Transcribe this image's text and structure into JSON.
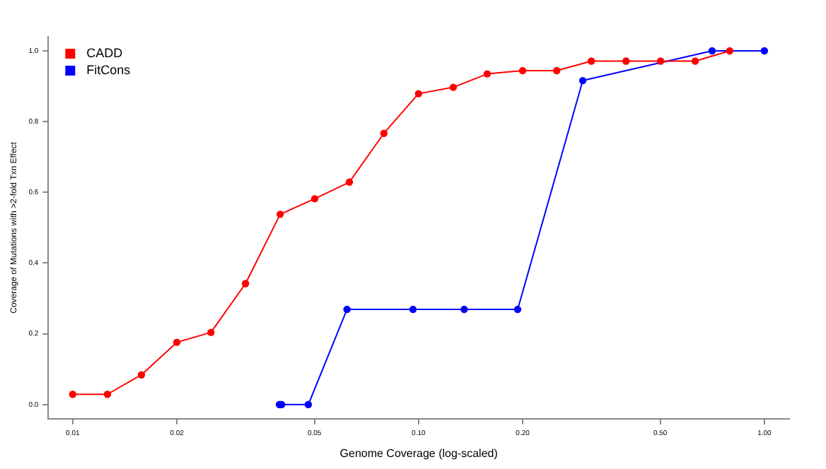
{
  "chart_data": {
    "type": "line",
    "xlabel": "Genome Coverage (log-scaled)",
    "ylabel": "Coverage of Mutations with >2-fold Txn Effect",
    "log": "x",
    "xlim": [
      0.0085,
      1.18
    ],
    "ylim": [
      -0.04,
      1.04
    ],
    "xticks": [
      0.01,
      0.02,
      0.05,
      {
        "value": 0.1,
        "label": "0.10"
      },
      {
        "value": 0.2,
        "label": "0.20"
      },
      {
        "value": 0.5,
        "label": "0.50"
      },
      {
        "value": 1,
        "label": "1.00"
      }
    ],
    "yticks": [
      {
        "value": 0,
        "label": "0.0"
      },
      0.2,
      0.4,
      0.6,
      0.8,
      {
        "value": 1,
        "label": "1.0"
      }
    ],
    "grid": false,
    "legend": "top left",
    "marker": "circle",
    "line_style": "solid",
    "series": [
      {
        "name": "CADD",
        "color": "#ff0000",
        "x": [
          0.01,
          0.0126,
          0.0158,
          0.02,
          0.0251,
          0.0316,
          0.0398,
          0.0501,
          0.0631,
          0.0794,
          0.1,
          0.126,
          0.158,
          0.2,
          0.251,
          0.316,
          0.398,
          0.501,
          0.631,
          0.794
        ],
        "values": [
          0.029,
          0.029,
          0.084,
          0.176,
          0.204,
          0.342,
          0.538,
          0.582,
          0.629,
          0.767,
          0.879,
          0.897,
          0.935,
          0.944,
          0.944,
          0.971,
          0.971,
          0.971,
          0.971,
          1.0
        ]
      },
      {
        "name": "FitCons",
        "color": "#0000ff",
        "x": [
          0.0396,
          0.0402,
          0.048,
          0.0621,
          0.0964,
          0.1355,
          0.1935,
          0.2985,
          0.706,
          1.0
        ],
        "values": [
          0,
          0,
          0,
          0.269,
          0.269,
          0.269,
          0.269,
          0.916,
          1.0,
          1.0
        ]
      }
    ]
  }
}
